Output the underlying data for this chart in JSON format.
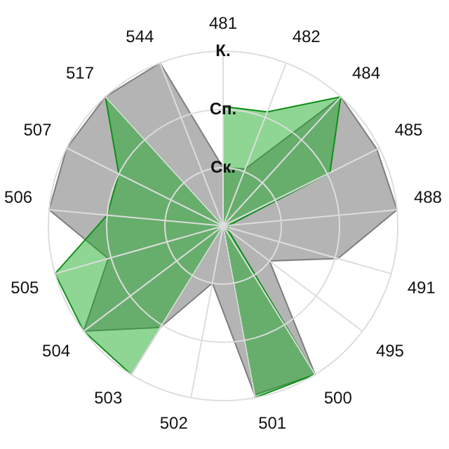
{
  "chart_data": {
    "type": "radar",
    "categories": [
      "481",
      "482",
      "484",
      "485",
      "488",
      "491",
      "495",
      "500",
      "501",
      "502",
      "503",
      "504",
      "505",
      "506",
      "507",
      "517",
      "544"
    ],
    "series": [
      {
        "color": "#b4b4b4",
        "values": [
          1.0,
          1.05,
          3.0,
          2.95,
          3.0,
          2.05,
          1.0,
          3.0,
          2.95,
          1.0,
          2.05,
          3.0,
          2.05,
          3.0,
          3.0,
          3.0,
          3.0
        ]
      },
      {
        "color": "#11a81c",
        "values": [
          2.05,
          2.1,
          3.0,
          2.05,
          0.1,
          0.1,
          0.1,
          3.0,
          3.0,
          0.0,
          3.0,
          3.0,
          3.0,
          2.0,
          2.0,
          3.0,
          0.0
        ]
      }
    ],
    "ylim": [
      0,
      3
    ],
    "yticks": [
      {
        "value": 1,
        "label": "Ск."
      },
      {
        "value": 2,
        "label": "Сп."
      },
      {
        "value": 3,
        "label": "К."
      }
    ],
    "grid": true,
    "legend": false,
    "marker": "none"
  }
}
